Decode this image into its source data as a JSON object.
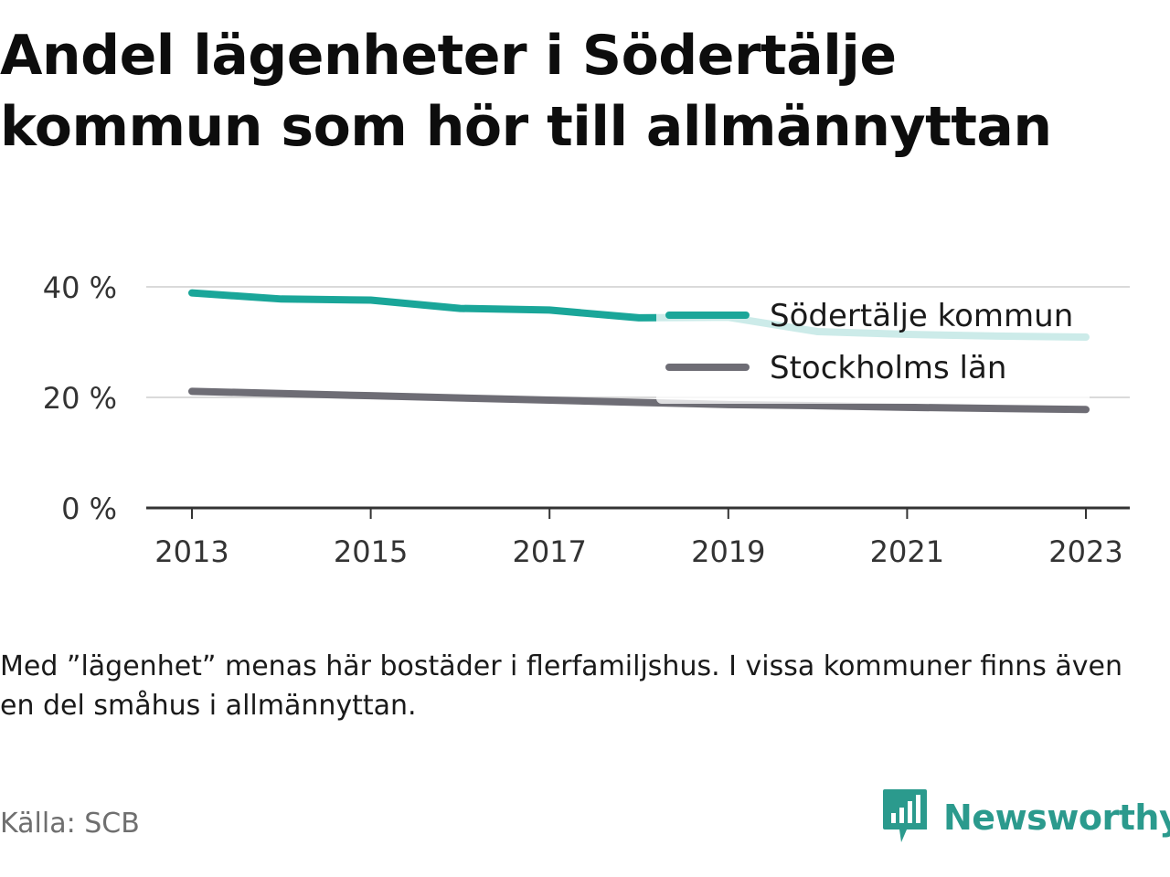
{
  "title": "Andel lägenheter i Södertälje kommun som hör till allmännyttan",
  "note": "Med ”lägenhet” menas här bostäder i flerfamiljshus. I vissa kommuner finns även en del småhus i allmännyttan.",
  "source": "Källa: SCB",
  "brand": {
    "name": "Newsworthy",
    "icon": "newsworthy-logo-icon",
    "color": "#2b9a8d"
  },
  "chart_data": {
    "type": "line",
    "title": "Andel lägenheter i Södertälje kommun som hör till allmännyttan",
    "xlabel": "",
    "ylabel": "",
    "x": [
      2013,
      2014,
      2015,
      2016,
      2017,
      2018,
      2019,
      2020,
      2021,
      2022,
      2023
    ],
    "xticks": [
      2013,
      2015,
      2017,
      2019,
      2021,
      2023
    ],
    "xtick_labels": [
      "2013",
      "2015",
      "2017",
      "2019",
      "2021",
      "2023"
    ],
    "xlim": [
      2012.5,
      2023.5
    ],
    "yticks": [
      0,
      20,
      40
    ],
    "ytick_labels": [
      "0 %",
      "20 %",
      "40 %"
    ],
    "ylim": [
      0,
      40
    ],
    "grid": true,
    "legend_placement": "top-right",
    "series": [
      {
        "name": "Södertälje kommun",
        "color": "#1aa699",
        "values": [
          38.9,
          37.8,
          37.6,
          36.1,
          35.8,
          34.4,
          34.5,
          31.9,
          31.4,
          31.1,
          30.9
        ]
      },
      {
        "name": "Stockholms län",
        "color": "#6e6d75",
        "values": [
          21.1,
          20.7,
          20.3,
          19.9,
          19.5,
          19.1,
          18.7,
          18.5,
          18.2,
          18.0,
          17.8
        ]
      }
    ]
  }
}
